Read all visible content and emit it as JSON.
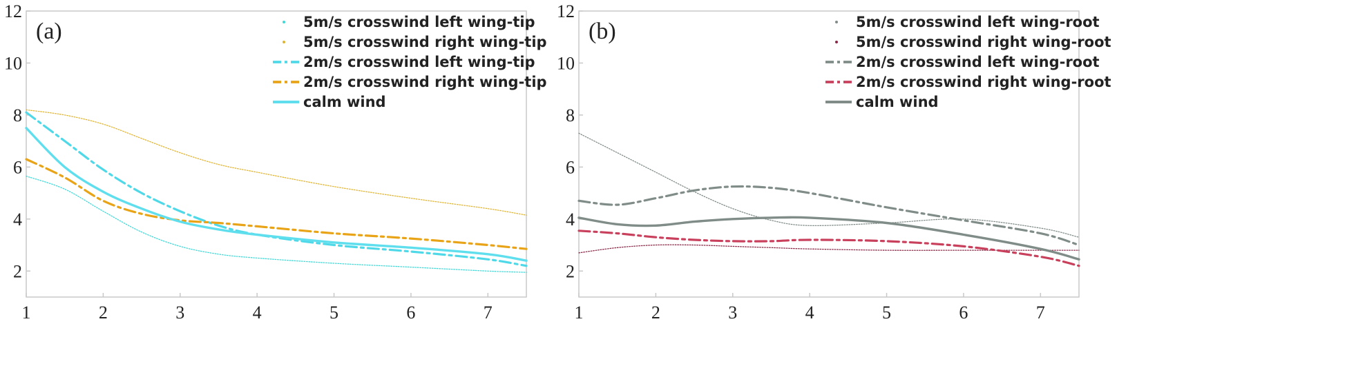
{
  "chart_data": [
    {
      "type": "line",
      "panel_label": "(a)",
      "xlim": [
        1,
        7.5
      ],
      "ylim": [
        1,
        12
      ],
      "xticks": [
        "1",
        "2",
        "3",
        "4",
        "5",
        "6",
        "7"
      ],
      "yticks": [
        "2",
        "4",
        "6",
        "8",
        "10",
        "12"
      ],
      "grid": false,
      "legend_position": "top-right",
      "series": [
        {
          "name": "5m/s crosswind left wing-tip",
          "color": "#3fd8d8",
          "style": "dotted",
          "x": [
            1,
            1.5,
            2,
            2.5,
            3,
            3.5,
            4,
            5,
            6,
            7,
            7.5
          ],
          "y": [
            5.65,
            5.15,
            4.3,
            3.5,
            2.95,
            2.65,
            2.5,
            2.3,
            2.15,
            2.0,
            1.95
          ]
        },
        {
          "name": "5m/s crosswind right wing-tip",
          "color": "#e0b430",
          "style": "dotted",
          "x": [
            1,
            1.5,
            2,
            2.5,
            3,
            3.5,
            4,
            5,
            6,
            7,
            7.5
          ],
          "y": [
            8.2,
            8.0,
            7.65,
            7.1,
            6.55,
            6.1,
            5.8,
            5.25,
            4.8,
            4.4,
            4.15
          ]
        },
        {
          "name": "2m/s crosswind left wing-tip",
          "color": "#4fd9e8",
          "style": "dashdot",
          "x": [
            1,
            1.5,
            2,
            2.5,
            3,
            3.5,
            4,
            5,
            6,
            7,
            7.5
          ],
          "y": [
            8.1,
            7.0,
            5.9,
            5.0,
            4.3,
            3.75,
            3.4,
            3.0,
            2.75,
            2.45,
            2.2
          ]
        },
        {
          "name": "2m/s crosswind right wing-tip",
          "color": "#e8a317",
          "style": "dashdot",
          "x": [
            1,
            1.5,
            2,
            2.5,
            3,
            3.5,
            4,
            5,
            6,
            7,
            7.5
          ],
          "y": [
            6.3,
            5.6,
            4.7,
            4.2,
            3.95,
            3.85,
            3.72,
            3.45,
            3.25,
            3.0,
            2.85
          ]
        },
        {
          "name": "calm wind",
          "color": "#5fdfee",
          "style": "solid",
          "x": [
            1,
            1.5,
            2,
            2.5,
            3,
            3.5,
            4,
            5,
            6,
            7,
            7.5
          ],
          "y": [
            7.5,
            6.0,
            5.05,
            4.4,
            3.9,
            3.6,
            3.4,
            3.1,
            2.9,
            2.65,
            2.4
          ]
        }
      ]
    },
    {
      "type": "line",
      "panel_label": "(b)",
      "xlim": [
        1,
        7.5
      ],
      "ylim": [
        1,
        12
      ],
      "xticks": [
        "1",
        "2",
        "3",
        "4",
        "5",
        "6",
        "7"
      ],
      "yticks": [
        "2",
        "4",
        "6",
        "8",
        "10",
        "12"
      ],
      "grid": false,
      "legend_position": "top-right",
      "series": [
        {
          "name": "5m/s crosswind left wing-root",
          "color": "#808c88",
          "style": "dotted",
          "x": [
            1,
            1.5,
            2,
            2.5,
            3,
            3.5,
            4,
            5,
            6,
            7,
            7.5
          ],
          "y": [
            7.3,
            6.55,
            5.8,
            5.05,
            4.4,
            3.95,
            3.75,
            3.85,
            4.0,
            3.65,
            3.3
          ]
        },
        {
          "name": "5m/s crosswind right wing-root",
          "color": "#8a2846",
          "style": "dotted",
          "x": [
            1,
            1.5,
            2,
            2.5,
            3,
            3.5,
            4,
            5,
            6,
            7,
            7.5
          ],
          "y": [
            2.7,
            2.9,
            3.0,
            3.0,
            2.95,
            2.9,
            2.85,
            2.8,
            2.8,
            2.8,
            2.8
          ]
        },
        {
          "name": "2m/s crosswind left wing-root",
          "color": "#7f8c88",
          "style": "dashdot",
          "x": [
            1,
            1.5,
            2,
            2.5,
            3,
            3.5,
            4,
            5,
            6,
            7,
            7.5
          ],
          "y": [
            4.7,
            4.55,
            4.8,
            5.1,
            5.25,
            5.2,
            5.0,
            4.45,
            3.95,
            3.45,
            3.0
          ]
        },
        {
          "name": "2m/s crosswind right wing-root",
          "color": "#c8405c",
          "style": "dashdot",
          "x": [
            1,
            1.5,
            2,
            2.5,
            3,
            3.5,
            4,
            5,
            6,
            7,
            7.5
          ],
          "y": [
            3.55,
            3.45,
            3.3,
            3.2,
            3.15,
            3.15,
            3.2,
            3.15,
            2.95,
            2.55,
            2.2
          ]
        },
        {
          "name": "calm wind",
          "color": "#7f8c88",
          "style": "solid",
          "x": [
            1,
            1.5,
            2,
            2.5,
            3,
            3.5,
            4,
            5,
            6,
            7,
            7.5
          ],
          "y": [
            4.05,
            3.8,
            3.75,
            3.9,
            4.0,
            4.05,
            4.05,
            3.85,
            3.4,
            2.85,
            2.45
          ]
        }
      ]
    }
  ]
}
